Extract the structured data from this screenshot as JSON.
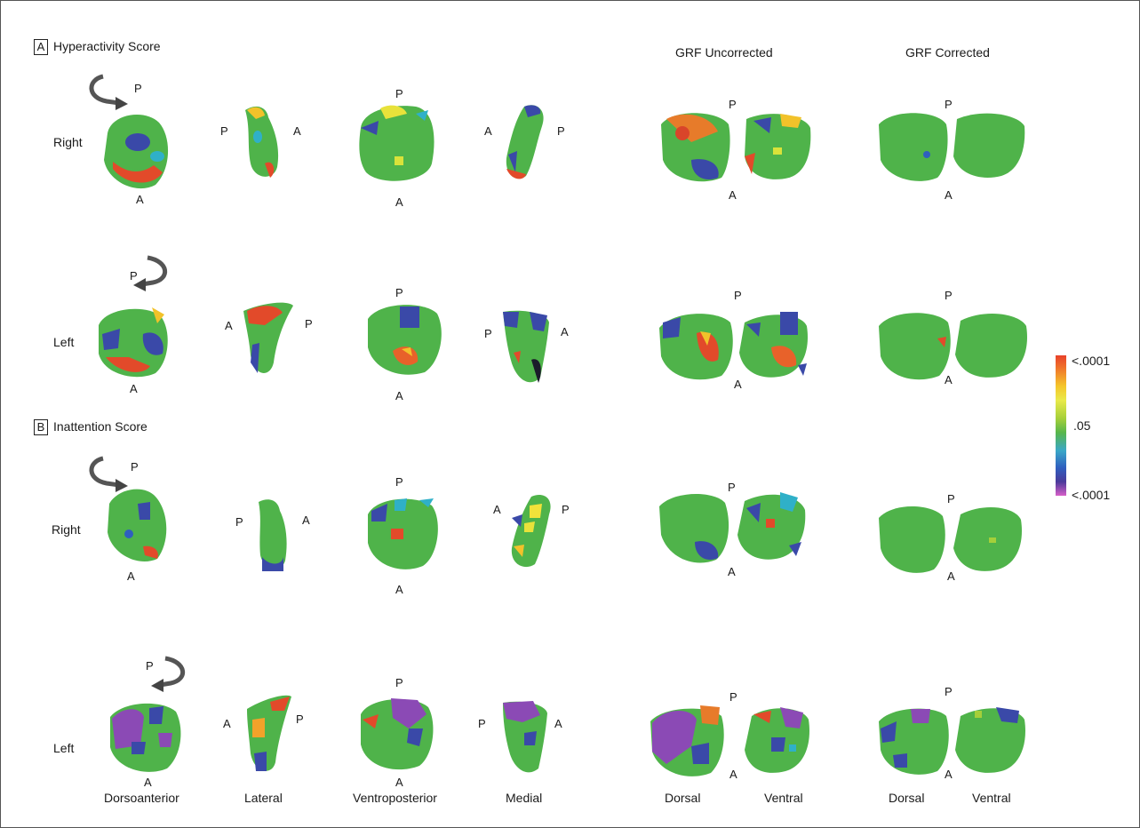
{
  "panels": {
    "a": {
      "letter": "A",
      "title": "Hyperactivity Score"
    },
    "b": {
      "letter": "B",
      "title": "Inattention Score"
    }
  },
  "column_headers": {
    "grf_uncorrected": "GRF Uncorrected",
    "grf_corrected": "GRF Corrected"
  },
  "row_labels": [
    "Right",
    "Left",
    "Right",
    "Left"
  ],
  "orientation": {
    "anterior": "A",
    "posterior": "P"
  },
  "view_labels": [
    "Dorsoanterior",
    "Lateral",
    "Ventroposterior",
    "Medial",
    "Dorsal",
    "Ventral",
    "Dorsal",
    "Ventral"
  ],
  "colorbar": {
    "top": "<.0001",
    "mid": ".05",
    "bottom": "<.0001",
    "colors": [
      "#e8412a",
      "#f5c62a",
      "#57b64a",
      "#3aa7c8",
      "#2f5fbf",
      "#d65fc8"
    ]
  }
}
